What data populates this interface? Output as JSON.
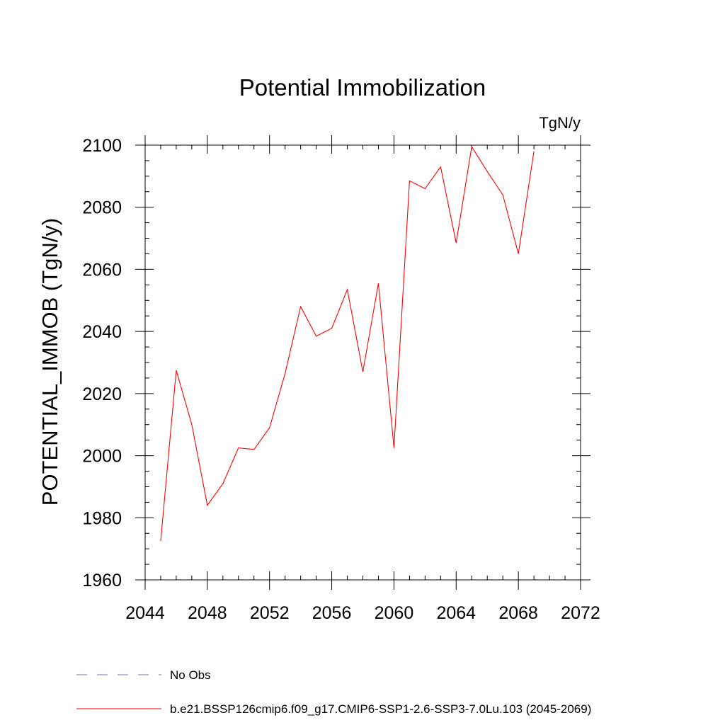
{
  "chart_data": {
    "type": "line",
    "title": "Potential Immobilization",
    "units_label": "TgN/y",
    "xlabel": "",
    "ylabel": "POTENTIAL_IMMOB  (TgN/y)",
    "xlim": [
      2044,
      2072
    ],
    "ylim": [
      1960,
      2100
    ],
    "xticks": [
      2044,
      2048,
      2052,
      2056,
      2060,
      2064,
      2068,
      2072
    ],
    "yticks": [
      1960,
      1980,
      2000,
      2020,
      2040,
      2060,
      2080,
      2100
    ],
    "x_minor_step": 1,
    "y_minor_step": 5,
    "grid": false,
    "legend_position": "bottom",
    "series": [
      {
        "name": "b.e21.BSSP126cmip6.f09_g17.CMIP6-SSP1-2.6-SSP3-7.0Lu.103 (2045-2069)",
        "color": "#ff0000",
        "style": "solid",
        "x": [
          2045,
          2046,
          2047,
          2048,
          2049,
          2050,
          2051,
          2052,
          2053,
          2054,
          2055,
          2056,
          2057,
          2058,
          2059,
          2060,
          2061,
          2062,
          2063,
          2064,
          2065,
          2066,
          2067,
          2068,
          2069
        ],
        "values": [
          1972.5,
          2027.5,
          2010,
          1984,
          1991,
          2002.5,
          2002,
          2009,
          2026.5,
          2048,
          2038.5,
          2041,
          2053.5,
          2027,
          2055.5,
          2002.5,
          2088.5,
          2086,
          2093,
          2068.5,
          2099.5,
          2091.5,
          2084,
          2065,
          2098
        ]
      }
    ],
    "legend": [
      {
        "label": "No Obs",
        "color": "#7777bb",
        "style": "dashed"
      },
      {
        "label": "b.e21.BSSP126cmip6.f09_g17.CMIP6-SSP1-2.6-SSP3-7.0Lu.103 (2045-2069)",
        "color": "#ff0000",
        "style": "solid"
      }
    ]
  }
}
